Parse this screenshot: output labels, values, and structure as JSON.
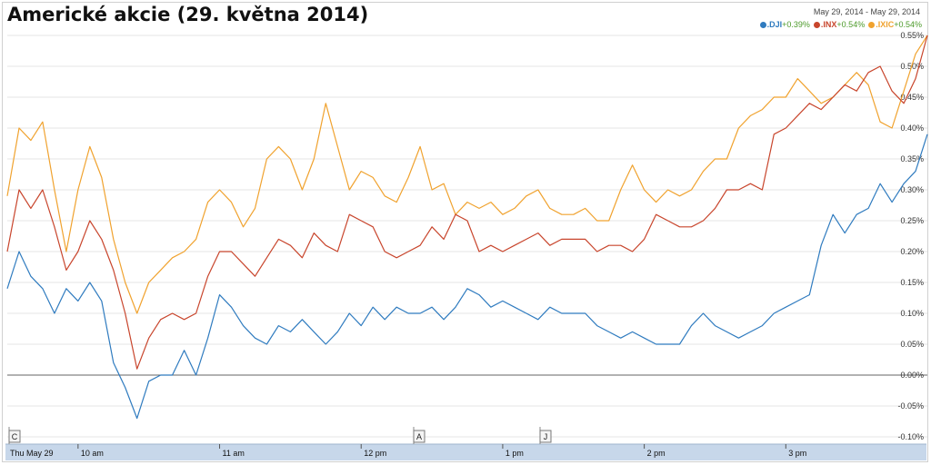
{
  "page_title": "Americké akcie (29. května 2014)",
  "date_range": "May 29, 2014  -  May 29, 2014",
  "chart_data": {
    "type": "line",
    "ylim": [
      -0.1,
      0.55
    ],
    "yticks": [
      "-0.10%",
      "-0.05%",
      "0.00%",
      "0.05%",
      "0.10%",
      "0.15%",
      "0.20%",
      "0.25%",
      "0.30%",
      "0.35%",
      "0.40%",
      "0.45%",
      "0.50%",
      "0.55%"
    ],
    "x_labels": [
      "Thu May 29",
      "10 am",
      "11 am",
      "12 pm",
      "1 pm",
      "2 pm",
      "3 pm"
    ],
    "x_range": [
      "9:30",
      "16:00"
    ],
    "flags": [
      "C",
      "A",
      "J"
    ],
    "series": [
      {
        "name": ".DJI",
        "change": "+0.39%",
        "color": "#2f7bbf",
        "x": [
          "9:30",
          "9:35",
          "9:40",
          "9:45",
          "9:50",
          "9:55",
          "10:00",
          "10:05",
          "10:10",
          "10:15",
          "10:20",
          "10:25",
          "10:30",
          "10:35",
          "10:40",
          "10:45",
          "10:50",
          "10:55",
          "11:00",
          "11:05",
          "11:10",
          "11:15",
          "11:20",
          "11:25",
          "11:30",
          "11:35",
          "11:40",
          "11:45",
          "11:50",
          "11:55",
          "12:00",
          "12:05",
          "12:10",
          "12:15",
          "12:20",
          "12:25",
          "12:30",
          "12:35",
          "12:40",
          "12:45",
          "12:50",
          "12:55",
          "13:00",
          "13:05",
          "13:10",
          "13:15",
          "13:20",
          "13:25",
          "13:30",
          "13:35",
          "13:40",
          "13:45",
          "13:50",
          "13:55",
          "14:00",
          "14:05",
          "14:10",
          "14:15",
          "14:20",
          "14:25",
          "14:30",
          "14:35",
          "14:40",
          "14:45",
          "14:50",
          "14:55",
          "15:00",
          "15:05",
          "15:10",
          "15:15",
          "15:20",
          "15:25",
          "15:30",
          "15:35",
          "15:40",
          "15:45",
          "15:50",
          "15:55",
          "16:00"
        ],
        "values": [
          0.14,
          0.2,
          0.16,
          0.14,
          0.1,
          0.14,
          0.12,
          0.15,
          0.12,
          0.02,
          -0.02,
          -0.07,
          -0.01,
          0.0,
          0.0,
          0.04,
          0.0,
          0.06,
          0.13,
          0.11,
          0.08,
          0.06,
          0.05,
          0.08,
          0.07,
          0.09,
          0.07,
          0.05,
          0.07,
          0.1,
          0.08,
          0.11,
          0.09,
          0.11,
          0.1,
          0.1,
          0.11,
          0.09,
          0.11,
          0.14,
          0.13,
          0.11,
          0.12,
          0.11,
          0.1,
          0.09,
          0.11,
          0.1,
          0.1,
          0.1,
          0.08,
          0.07,
          0.06,
          0.07,
          0.06,
          0.05,
          0.05,
          0.05,
          0.08,
          0.1,
          0.08,
          0.07,
          0.06,
          0.07,
          0.08,
          0.1,
          0.11,
          0.12,
          0.13,
          0.21,
          0.26,
          0.23,
          0.26,
          0.27,
          0.31,
          0.28,
          0.31,
          0.33,
          0.39
        ]
      },
      {
        "name": ".INX",
        "change": "+0.54%",
        "color": "#c8452c",
        "x": [
          "9:30",
          "9:35",
          "9:40",
          "9:45",
          "9:50",
          "9:55",
          "10:00",
          "10:05",
          "10:10",
          "10:15",
          "10:20",
          "10:25",
          "10:30",
          "10:35",
          "10:40",
          "10:45",
          "10:50",
          "10:55",
          "11:00",
          "11:05",
          "11:10",
          "11:15",
          "11:20",
          "11:25",
          "11:30",
          "11:35",
          "11:40",
          "11:45",
          "11:50",
          "11:55",
          "12:00",
          "12:05",
          "12:10",
          "12:15",
          "12:20",
          "12:25",
          "12:30",
          "12:35",
          "12:40",
          "12:45",
          "12:50",
          "12:55",
          "13:00",
          "13:05",
          "13:10",
          "13:15",
          "13:20",
          "13:25",
          "13:30",
          "13:35",
          "13:40",
          "13:45",
          "13:50",
          "13:55",
          "14:00",
          "14:05",
          "14:10",
          "14:15",
          "14:20",
          "14:25",
          "14:30",
          "14:35",
          "14:40",
          "14:45",
          "14:50",
          "14:55",
          "15:00",
          "15:05",
          "15:10",
          "15:15",
          "15:20",
          "15:25",
          "15:30",
          "15:35",
          "15:40",
          "15:45",
          "15:50",
          "15:55",
          "16:00"
        ],
        "values": [
          0.2,
          0.3,
          0.27,
          0.3,
          0.24,
          0.17,
          0.2,
          0.25,
          0.22,
          0.17,
          0.1,
          0.01,
          0.06,
          0.09,
          0.1,
          0.09,
          0.1,
          0.16,
          0.2,
          0.2,
          0.18,
          0.16,
          0.19,
          0.22,
          0.21,
          0.19,
          0.23,
          0.21,
          0.2,
          0.26,
          0.25,
          0.24,
          0.2,
          0.19,
          0.2,
          0.21,
          0.24,
          0.22,
          0.26,
          0.25,
          0.2,
          0.21,
          0.2,
          0.21,
          0.22,
          0.23,
          0.21,
          0.22,
          0.22,
          0.22,
          0.2,
          0.21,
          0.21,
          0.2,
          0.22,
          0.26,
          0.25,
          0.24,
          0.24,
          0.25,
          0.27,
          0.3,
          0.3,
          0.31,
          0.3,
          0.39,
          0.4,
          0.42,
          0.44,
          0.43,
          0.45,
          0.47,
          0.46,
          0.49,
          0.5,
          0.46,
          0.44,
          0.48,
          0.55
        ]
      },
      {
        "name": ".IXIC",
        "change": "+0.54%",
        "color": "#f0a22e",
        "x": [
          "9:30",
          "9:35",
          "9:40",
          "9:45",
          "9:50",
          "9:55",
          "10:00",
          "10:05",
          "10:10",
          "10:15",
          "10:20",
          "10:25",
          "10:30",
          "10:35",
          "10:40",
          "10:45",
          "10:50",
          "10:55",
          "11:00",
          "11:05",
          "11:10",
          "11:15",
          "11:20",
          "11:25",
          "11:30",
          "11:35",
          "11:40",
          "11:45",
          "11:50",
          "11:55",
          "12:00",
          "12:05",
          "12:10",
          "12:15",
          "12:20",
          "12:25",
          "12:30",
          "12:35",
          "12:40",
          "12:45",
          "12:50",
          "12:55",
          "13:00",
          "13:05",
          "13:10",
          "13:15",
          "13:20",
          "13:25",
          "13:30",
          "13:35",
          "13:40",
          "13:45",
          "13:50",
          "13:55",
          "14:00",
          "14:05",
          "14:10",
          "14:15",
          "14:20",
          "14:25",
          "14:30",
          "14:35",
          "14:40",
          "14:45",
          "14:50",
          "14:55",
          "15:00",
          "15:05",
          "15:10",
          "15:15",
          "15:20",
          "15:25",
          "15:30",
          "15:35",
          "15:40",
          "15:45",
          "15:50",
          "15:55",
          "16:00"
        ],
        "values": [
          0.29,
          0.4,
          0.38,
          0.41,
          0.3,
          0.2,
          0.3,
          0.37,
          0.32,
          0.22,
          0.15,
          0.1,
          0.15,
          0.17,
          0.19,
          0.2,
          0.22,
          0.28,
          0.3,
          0.28,
          0.24,
          0.27,
          0.35,
          0.37,
          0.35,
          0.3,
          0.35,
          0.44,
          0.37,
          0.3,
          0.33,
          0.32,
          0.29,
          0.28,
          0.32,
          0.37,
          0.3,
          0.31,
          0.26,
          0.28,
          0.27,
          0.28,
          0.26,
          0.27,
          0.29,
          0.3,
          0.27,
          0.26,
          0.26,
          0.27,
          0.25,
          0.25,
          0.3,
          0.34,
          0.3,
          0.28,
          0.3,
          0.29,
          0.3,
          0.33,
          0.35,
          0.35,
          0.4,
          0.42,
          0.43,
          0.45,
          0.45,
          0.48,
          0.46,
          0.44,
          0.45,
          0.47,
          0.49,
          0.47,
          0.41,
          0.4,
          0.46,
          0.52,
          0.55
        ]
      }
    ]
  }
}
